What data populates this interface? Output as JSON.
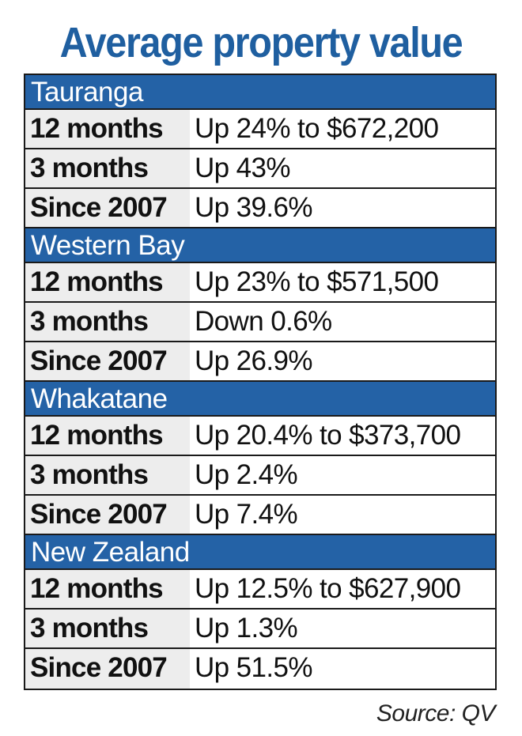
{
  "title": "Average property value",
  "sections": [
    {
      "name": "Tauranga",
      "rows": [
        {
          "label": "12 months",
          "value": "Up 24% to $672,200"
        },
        {
          "label": "3 months",
          "value": "Up 43%"
        },
        {
          "label": "Since 2007",
          "value": "Up 39.6%"
        }
      ]
    },
    {
      "name": "Western Bay",
      "rows": [
        {
          "label": "12 months",
          "value": "Up 23% to $571,500"
        },
        {
          "label": "3 months",
          "value": "Down 0.6%"
        },
        {
          "label": "Since 2007",
          "value": "Up 26.9%"
        }
      ]
    },
    {
      "name": "Whakatane",
      "rows": [
        {
          "label": "12 months",
          "value": "Up 20.4% to $373,700"
        },
        {
          "label": "3 months",
          "value": "Up 2.4%"
        },
        {
          "label": "Since 2007",
          "value": "Up 7.4%"
        }
      ]
    },
    {
      "name": "New Zealand",
      "rows": [
        {
          "label": "12 months",
          "value": "Up 12.5% to $627,900"
        },
        {
          "label": "3 months",
          "value": "Up 1.3%"
        },
        {
          "label": "Since 2007",
          "value": "Up 51.5%"
        }
      ]
    }
  ],
  "source": "Source: QV",
  "colors": {
    "title": "#1f5fa0",
    "section_header": "#2462a6",
    "label_background": "#ededed"
  }
}
